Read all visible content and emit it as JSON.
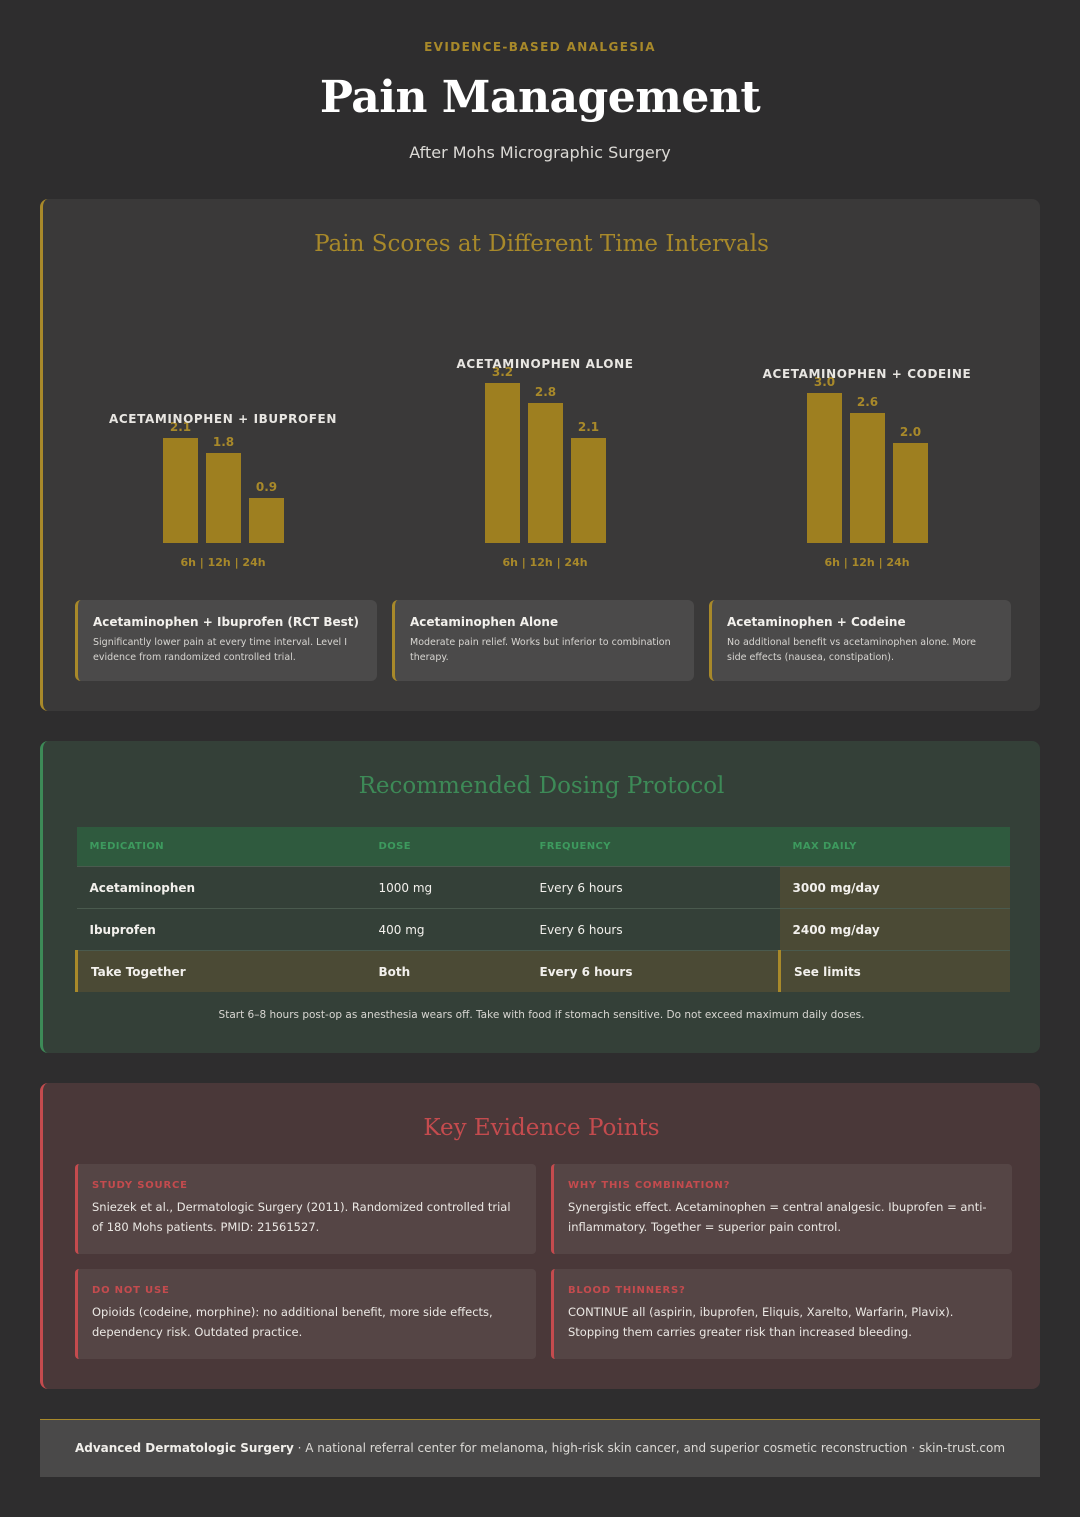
{
  "header": {
    "eyebrow": "EVIDENCE-BASED ANALGESIA",
    "title": "Pain Management",
    "subtitle": "After Mohs Micrographic Surgery"
  },
  "pain_section": {
    "title": "Pain Scores at Different Time Intervals",
    "notes": [
      {
        "title": "Acetaminophen + Ibuprofen (RCT Best)",
        "text": "Significantly lower pain at every time interval. Level I evidence from randomized controlled trial."
      },
      {
        "title": "Acetaminophen Alone",
        "text": "Moderate pain relief. Works but inferior to combination therapy."
      },
      {
        "title": "Acetaminophen + Codeine",
        "text": "No additional benefit vs acetaminophen alone. More side effects (nausea, constipation)."
      }
    ]
  },
  "chart_data": {
    "type": "bar",
    "categories": [
      "6h",
      "12h",
      "24h"
    ],
    "axis_label": "6h | 12h | 24h",
    "series": [
      {
        "name": "ACETAMINOPHEN + IBUPROFEN",
        "values": [
          "2.1",
          "1.8",
          "0.9"
        ]
      },
      {
        "name": "ACETAMINOPHEN ALONE",
        "values": [
          "3.2",
          "2.8",
          "2.1"
        ]
      },
      {
        "name": "ACETAMINOPHEN + CODEINE",
        "values": [
          "3.0",
          "2.6",
          "2.0"
        ]
      }
    ]
  },
  "dosing": {
    "title": "Recommended Dosing Protocol",
    "headers": [
      "MEDICATION",
      "DOSE",
      "FREQUENCY",
      "MAX DAILY"
    ],
    "rows": [
      [
        "Acetaminophen",
        "1000 mg",
        "Every 6 hours",
        "3000 mg/day"
      ],
      [
        "Ibuprofen",
        "400 mg",
        "Every 6 hours",
        "2400 mg/day"
      ],
      [
        "Take Together",
        "Both",
        "Every 6 hours",
        "See limits"
      ]
    ],
    "note": "Start 6–8 hours post-op as anesthesia wears off. Take with food if stomach sensitive. Do not exceed maximum daily doses."
  },
  "evidence": {
    "title": "Key Evidence Points",
    "items": [
      {
        "label": "STUDY SOURCE",
        "text": "Sniezek et al., Dermatologic Surgery (2011). Randomized controlled trial of 180 Mohs patients. PMID: 21561527."
      },
      {
        "label": "WHY THIS COMBINATION?",
        "text": "Synergistic effect. Acetaminophen = central analgesic. Ibuprofen = anti-inflammatory. Together = superior pain control."
      },
      {
        "label": "DO NOT USE",
        "text": "Opioids (codeine, morphine): no additional benefit, more side effects, dependency risk. Outdated practice."
      },
      {
        "label": "BLOOD THINNERS?",
        "text": "CONTINUE all (aspirin, ibuprofen, Eliquis, Xarelto, Warfarin, Plavix). Stopping them carries greater risk than increased bleeding."
      }
    ]
  },
  "footer": {
    "org": "Advanced Dermatologic Surgery",
    "text": " · A national referral center for melanoma, high-risk skin cancer, and superior cosmetic reconstruction · skin-trust.com"
  },
  "colors": {
    "gold": "#a8892a",
    "green": "#3d8a57",
    "red": "#c44b4e"
  }
}
